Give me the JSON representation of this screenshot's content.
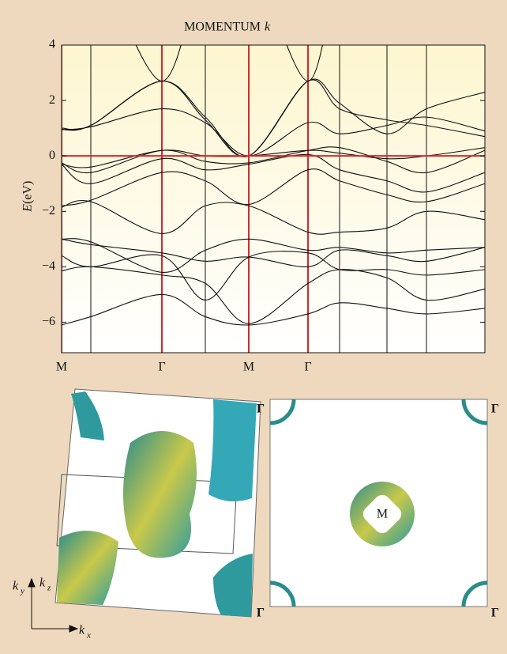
{
  "chart_data": {
    "type": "line",
    "title": "MOMENTUM",
    "title_italic": "k",
    "y_label_italic": "E",
    "y_label": "(eV)",
    "categories": [
      "M",
      null,
      "Γ",
      null,
      "M",
      "Γ",
      null,
      null,
      null,
      null
    ],
    "vline_colors": [
      "#d42a2a",
      "#111111",
      "#d42a2a",
      "#111111",
      "#d42a2a",
      "#d42a2a",
      "#111111",
      "#111111",
      "#111111",
      "#111111"
    ],
    "hline": {
      "value": 0,
      "color": "#d42a2a"
    },
    "line_color": "#111111",
    "ylim": [
      -7.1,
      4
    ],
    "yticks": [
      4,
      2,
      0,
      {
        "value": -2,
        "label": "−2"
      },
      {
        "value": -4,
        "label": "−4"
      },
      {
        "value": -6,
        "label": "−6"
      }
    ],
    "series": [
      {
        "values": [
          -6.1,
          -5.8,
          -5.0,
          -5.8,
          -6.1,
          -5.7,
          -5.3,
          -5.5,
          -5.7,
          -5.5
        ]
      },
      {
        "values": [
          -4.15,
          -4.0,
          -4.3,
          -4.6,
          -6.05,
          -4.6,
          -4.1,
          -4.4,
          -5.2,
          -4.8
        ]
      },
      {
        "values": [
          -3.6,
          -4.0,
          -3.6,
          -5.2,
          -3.65,
          -3.5,
          -4.1,
          -4.1,
          -4.3,
          -4.1
        ]
      },
      {
        "values": [
          -3.0,
          -3.2,
          -3.5,
          -3.8,
          -3.65,
          -4.0,
          -3.4,
          -3.6,
          -3.8,
          -3.3
        ]
      },
      {
        "values": [
          -3.0,
          -3.1,
          -4.2,
          -3.4,
          -3.0,
          -3.4,
          -3.3,
          -3.5,
          -3.4,
          -3.3
        ]
      },
      {
        "values": [
          -1.85,
          -1.65,
          -2.8,
          -1.8,
          -1.8,
          -2.75,
          -2.75,
          -2.6,
          -2.0,
          -2.3
        ]
      },
      {
        "values": [
          -1.8,
          -1.6,
          -0.6,
          -0.9,
          -1.75,
          -0.5,
          -0.9,
          -1.4,
          -1.65,
          -1.0
        ]
      },
      {
        "values": [
          -0.3,
          -1.0,
          -0.1,
          -0.5,
          -0.3,
          0.05,
          -0.5,
          -0.9,
          -1.3,
          -0.6
        ]
      },
      {
        "values": [
          -0.25,
          -0.6,
          0.2,
          -0.2,
          -0.25,
          0.2,
          0.3,
          -0.2,
          -0.6,
          0.2
        ]
      },
      {
        "values": [
          -0.3,
          -0.4,
          0.2,
          0.0,
          0.0,
          0.2,
          0.1,
          -0.1,
          0.0,
          0.3
        ]
      },
      {
        "values": [
          0.95,
          1.05,
          1.7,
          1.2,
          0.0,
          1.2,
          0.8,
          1.1,
          1.4,
          0.9
        ]
      },
      {
        "values": [
          0.95,
          1.1,
          2.7,
          1.3,
          0.0,
          2.7,
          1.7,
          1.3,
          1.1,
          0.7
        ]
      },
      {
        "values": [
          1.0,
          1.1,
          2.7,
          1.4,
          0.0,
          2.7,
          1.9,
          0.8,
          1.7,
          2.3
        ]
      },
      {
        "values": [
          null,
          8,
          2.7,
          8,
          null,
          null,
          null,
          null,
          null,
          null
        ]
      },
      {
        "values": [
          null,
          null,
          null,
          null,
          8,
          2.7,
          8,
          null,
          null,
          null
        ]
      }
    ]
  },
  "fermi_surface": {
    "corner_labels": [
      "Γ",
      "Γ",
      "Γ",
      "Γ"
    ],
    "center_label": "M",
    "axes": {
      "ky": [
        "k",
        "y"
      ],
      "kz": [
        "k",
        "z"
      ],
      "kx": [
        "k",
        "x"
      ]
    }
  }
}
